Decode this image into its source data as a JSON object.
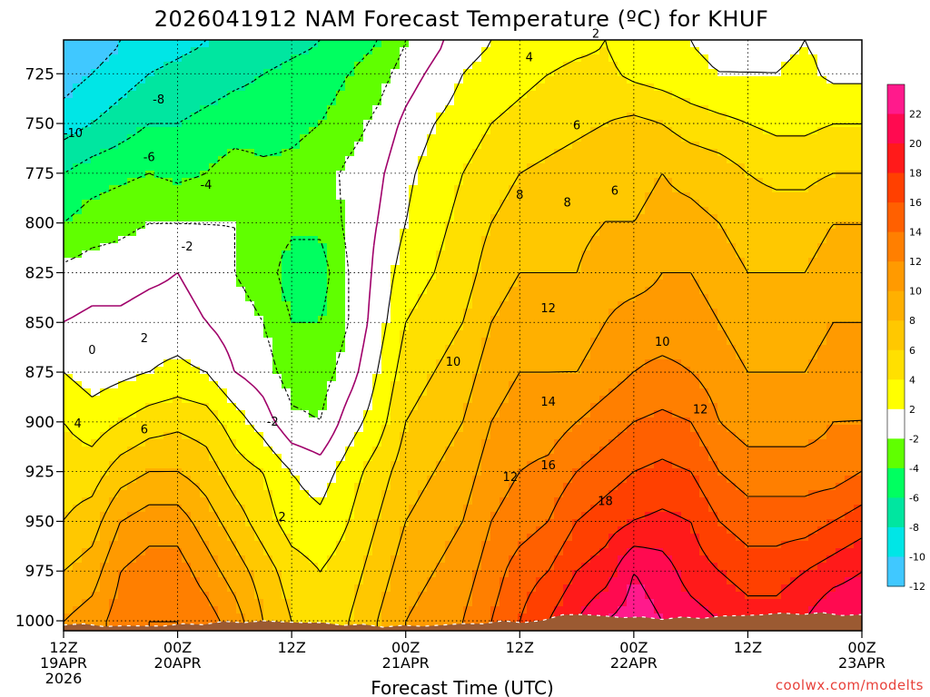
{
  "chart_data": {
    "type": "heatmap",
    "title": "2026041912 NAM Forecast Temperature (ºC) for KHUF",
    "xlabel": "Forecast Time (UTC)",
    "ylabel": "",
    "credit": "coolwx.com/modelts",
    "y_levels_hPa": [
      725,
      750,
      775,
      800,
      825,
      850,
      875,
      900,
      925,
      950,
      975,
      1000
    ],
    "ylim": [
      1005,
      708
    ],
    "x_ticks": [
      {
        "hour": 0,
        "line1": "12Z",
        "line2": "19APR",
        "line3": "2026"
      },
      {
        "hour": 12,
        "line1": "00Z",
        "line2": "20APR",
        "line3": ""
      },
      {
        "hour": 24,
        "line1": "12Z",
        "line2": "",
        "line3": ""
      },
      {
        "hour": 36,
        "line1": "00Z",
        "line2": "21APR",
        "line3": ""
      },
      {
        "hour": 48,
        "line1": "12Z",
        "line2": "",
        "line3": ""
      },
      {
        "hour": 60,
        "line1": "00Z",
        "line2": "22APR",
        "line3": ""
      },
      {
        "hour": 72,
        "line1": "12Z",
        "line2": "",
        "line3": ""
      },
      {
        "hour": 84,
        "line1": "00Z",
        "line2": "23APR",
        "line3": ""
      }
    ],
    "xlim": [
      0,
      84
    ],
    "grid": true,
    "colorbar": {
      "ticks": [
        22,
        20,
        18,
        16,
        14,
        12,
        10,
        8,
        6,
        4,
        2,
        -2,
        -4,
        -6,
        -8,
        -10,
        -12
      ],
      "colors": [
        "#ff1a8c",
        "#ff0a50",
        "#ff1a1a",
        "#ff4000",
        "#ff6000",
        "#ff7f00",
        "#ff9a00",
        "#ffb000",
        "#ffc800",
        "#ffe000",
        "#ffff00",
        "#ffffff",
        "#60ff00",
        "#00ff60",
        "#00e6a0",
        "#00e6e6",
        "#40c8ff"
      ]
    },
    "field_hours": [
      0,
      3,
      6,
      9,
      12,
      15,
      18,
      21,
      24,
      27,
      30,
      33,
      36,
      39,
      42,
      45,
      48,
      51,
      54,
      57,
      60,
      63,
      66,
      69,
      72,
      75,
      78,
      81,
      84
    ],
    "field_levels_hPa": [
      1000,
      975,
      950,
      925,
      900,
      875,
      850,
      825,
      800,
      775,
      750,
      725,
      710
    ],
    "field_temps_C": [
      [
        10,
        11,
        13,
        14,
        14,
        13,
        11,
        8,
        6,
        5,
        6,
        8,
        10,
        11,
        12,
        14,
        16,
        18,
        20,
        22,
        23,
        22,
        21,
        20,
        19,
        19,
        20,
        22,
        22
      ],
      [
        8,
        9,
        12,
        13,
        13,
        11,
        9,
        7,
        5,
        4,
        5,
        7,
        9,
        10,
        11,
        13,
        15,
        16,
        18,
        19,
        22,
        21,
        19,
        18,
        17,
        17,
        18,
        19,
        20
      ],
      [
        6,
        7,
        10,
        11,
        11,
        9,
        7,
        5,
        3,
        2.5,
        4,
        6,
        8,
        9,
        10,
        12,
        13,
        14,
        16,
        17,
        18,
        18.5,
        18,
        16,
        15,
        15,
        15,
        16,
        17
      ],
      [
        5,
        5,
        7,
        8,
        8,
        7,
        5,
        4,
        2,
        1,
        3,
        5,
        7,
        8,
        9,
        11,
        12,
        12.5,
        14,
        15,
        16,
        16.5,
        16,
        14,
        13,
        13,
        13,
        13,
        14
      ],
      [
        4,
        3,
        4,
        5,
        5.5,
        5,
        3,
        1,
        -1.5,
        -2,
        1,
        3,
        6,
        7,
        8,
        10,
        11,
        11,
        12,
        13,
        14,
        14.5,
        14,
        12,
        11,
        11,
        11,
        12,
        12
      ],
      [
        2,
        1,
        1.5,
        2,
        2.5,
        2,
        0,
        -1,
        -3,
        -3,
        -1,
        2,
        5,
        6,
        7,
        9,
        10,
        10,
        10,
        11,
        12,
        12.5,
        12,
        11,
        10,
        10,
        10,
        11,
        11
      ],
      [
        0,
        0.5,
        0.5,
        1,
        1,
        0,
        -1,
        -2,
        -4,
        -4,
        -2,
        1,
        4,
        5,
        6,
        8,
        9,
        9,
        9,
        10,
        11,
        11,
        11,
        10,
        9,
        9,
        9,
        10,
        10
      ],
      [
        -1.5,
        -1,
        -1,
        -0.5,
        0,
        -1,
        -2,
        -3,
        -5,
        -5,
        -2,
        0.5,
        3,
        4,
        5,
        7,
        8,
        8,
        8,
        9,
        9,
        10,
        10,
        9,
        8,
        8,
        8,
        9,
        9
      ],
      [
        -4,
        -3,
        -2.5,
        -2,
        -2,
        -2,
        -2,
        -3,
        -3.5,
        -3.5,
        -1.5,
        0,
        2,
        3.5,
        4.5,
        6,
        7,
        7.5,
        7.5,
        8,
        8,
        8.5,
        8.5,
        8,
        7,
        7,
        7,
        8,
        8
      ],
      [
        -6,
        -5,
        -4.5,
        -4,
        -4.5,
        -4,
        -3,
        -3.5,
        -3.5,
        -3,
        -1.5,
        -0.5,
        1.5,
        3,
        4,
        5,
        6,
        6.5,
        7,
        7.5,
        7.5,
        8,
        7.5,
        7,
        6,
        5.5,
        5.5,
        6,
        6
      ],
      [
        -9,
        -8,
        -7,
        -6,
        -6,
        -5.5,
        -5,
        -5,
        -4.5,
        -4,
        -3,
        -1.5,
        0.5,
        2,
        3,
        4,
        4.5,
        5,
        5.5,
        6,
        6.5,
        6,
        5,
        4.5,
        4,
        3.5,
        3.5,
        4,
        4
      ],
      [
        -11,
        -10,
        -9,
        -8,
        -7.5,
        -7,
        -6.5,
        -6,
        -5.5,
        -5,
        -4,
        -3,
        -1,
        0.5,
        2,
        3,
        3.5,
        4,
        4.5,
        4.5,
        3.5,
        3,
        2.5,
        2,
        2,
        2,
        2.5,
        1.5,
        1.5
      ],
      [
        -12,
        -11,
        -10,
        -9,
        -8.5,
        -8,
        -7.5,
        -7,
        -6.5,
        -6,
        -5,
        -4,
        -2,
        -0.5,
        1,
        2,
        2.5,
        3,
        3.5,
        4,
        3,
        2.5,
        2,
        1.5,
        1.5,
        1.5,
        2,
        1.5,
        1
      ]
    ],
    "contour_labels": [
      {
        "text": "-10",
        "hour": 1,
        "level": 755
      },
      {
        "text": "-8",
        "hour": 10,
        "level": 738
      },
      {
        "text": "-6",
        "hour": 9,
        "level": 767
      },
      {
        "text": "-4",
        "hour": 15,
        "level": 781
      },
      {
        "text": "-2",
        "hour": 13,
        "level": 812
      },
      {
        "text": "0",
        "hour": 3,
        "level": 864
      },
      {
        "text": "2",
        "hour": 8.5,
        "level": 858
      },
      {
        "text": "4",
        "hour": 1.5,
        "level": 901
      },
      {
        "text": "6",
        "hour": 8.5,
        "level": 904
      },
      {
        "text": "-2",
        "hour": 22,
        "level": 900
      },
      {
        "text": "2",
        "hour": 23,
        "level": 948
      },
      {
        "text": "2",
        "hour": 56,
        "level": 705
      },
      {
        "text": "4",
        "hour": 49,
        "level": 717
      },
      {
        "text": "6",
        "hour": 54,
        "level": 751
      },
      {
        "text": "6",
        "hour": 58,
        "level": 784
      },
      {
        "text": "8",
        "hour": 48,
        "level": 786
      },
      {
        "text": "8",
        "hour": 53,
        "level": 790
      },
      {
        "text": "10",
        "hour": 41,
        "level": 870
      },
      {
        "text": "10",
        "hour": 63,
        "level": 860
      },
      {
        "text": "12",
        "hour": 47,
        "level": 928
      },
      {
        "text": "12",
        "hour": 51,
        "level": 843
      },
      {
        "text": "12",
        "hour": 67,
        "level": 894
      },
      {
        "text": "14",
        "hour": 51,
        "level": 890
      },
      {
        "text": "16",
        "hour": 51,
        "level": 922
      },
      {
        "text": "18",
        "hour": 57,
        "level": 940
      }
    ]
  }
}
